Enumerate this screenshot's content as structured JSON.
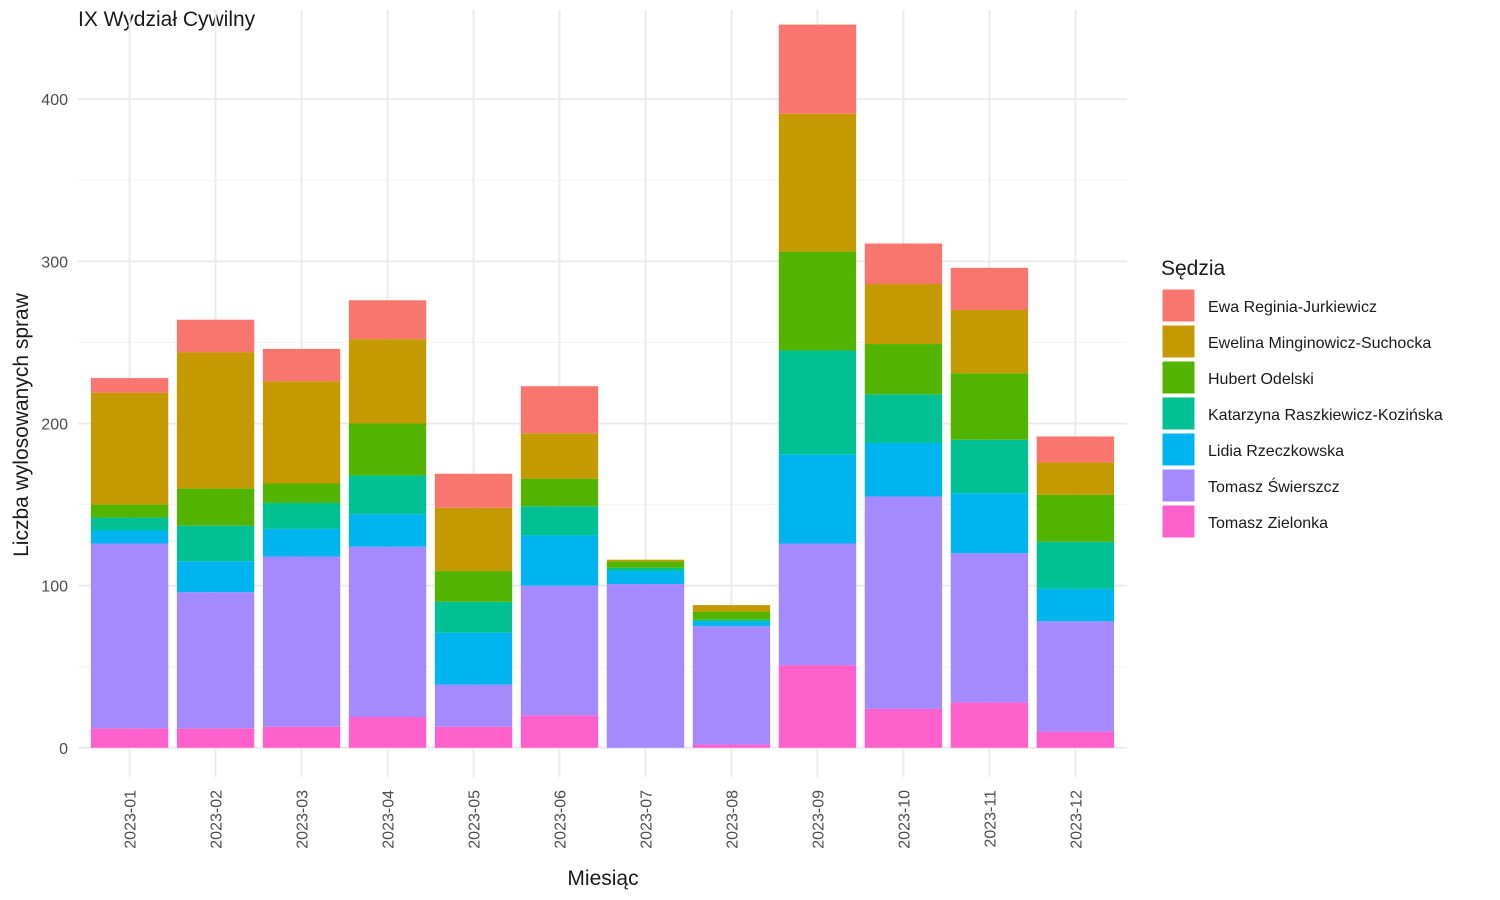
{
  "chart_data": {
    "type": "bar",
    "stacked": true,
    "title": "IX Wydział Cywilny",
    "xlabel": "Miesiąc",
    "ylabel": "Liczba wylosowanych spraw",
    "ylim": [
      -18,
      455
    ],
    "y_ticks": [
      0,
      100,
      200,
      300,
      400
    ],
    "grid": true,
    "legend_title": "Sędzia",
    "legend_position": "right",
    "categories": [
      "2023-01",
      "2023-02",
      "2023-03",
      "2023-04",
      "2023-05",
      "2023-06",
      "2023-07",
      "2023-08",
      "2023-09",
      "2023-10",
      "2023-11",
      "2023-12"
    ],
    "series": [
      {
        "name": "Tomasz Zielonka",
        "color": "#FF61CC",
        "values": [
          12,
          12,
          13,
          19,
          13,
          20,
          0,
          2,
          51,
          24,
          28,
          10
        ]
      },
      {
        "name": "Tomasz Świerszcz",
        "color": "#A58AFF",
        "values": [
          114,
          84,
          105,
          105,
          26,
          80,
          101,
          73,
          75,
          131,
          92,
          68
        ]
      },
      {
        "name": "Lidia Rzeczkowska",
        "color": "#00B4EF",
        "values": [
          8,
          19,
          17,
          20,
          32,
          31,
          8,
          3,
          55,
          33,
          37,
          20
        ]
      },
      {
        "name": "Katarzyna Raszkiewicz-Kozińska",
        "color": "#00C094",
        "values": [
          8,
          22,
          16,
          24,
          19,
          18,
          2,
          1,
          64,
          30,
          33,
          29
        ]
      },
      {
        "name": "Hubert Odelski",
        "color": "#53B400",
        "values": [
          8,
          23,
          12,
          32,
          19,
          17,
          4,
          5,
          61,
          31,
          41,
          29
        ]
      },
      {
        "name": "Ewelina Minginowicz-Suchocka",
        "color": "#C49A00",
        "values": [
          69,
          84,
          63,
          52,
          39,
          28,
          1,
          4,
          85,
          37,
          39,
          20
        ]
      },
      {
        "name": "Ewa Reginia-Jurkiewicz",
        "color": "#F8766D",
        "values": [
          9,
          20,
          20,
          24,
          21,
          29,
          0,
          0,
          55,
          25,
          26,
          16
        ]
      }
    ],
    "legend_order": [
      "Ewa Reginia-Jurkiewicz",
      "Ewelina Minginowicz-Suchocka",
      "Hubert Odelski",
      "Katarzyna Raszkiewicz-Kozińska",
      "Lidia Rzeczkowska",
      "Tomasz Świerszcz",
      "Tomasz Zielonka"
    ]
  }
}
